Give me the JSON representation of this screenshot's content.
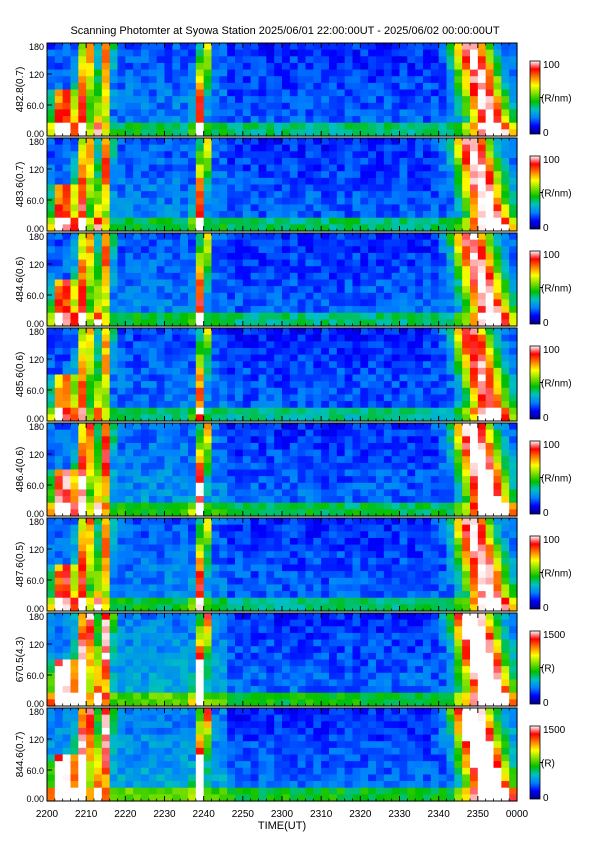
{
  "chart_data": {
    "type": "heatmap",
    "title": "Scanning Photomter at Syowa Station  2025/06/01 22:00:00UT - 2025/06/02 00:00:00UT",
    "xlabel": "TIME(UT)",
    "x_ticks": [
      "2200",
      "2210",
      "2220",
      "2230",
      "2240",
      "2250",
      "2300",
      "2310",
      "2320",
      "2330",
      "2340",
      "2350",
      "0000"
    ],
    "x_minutes": [
      0,
      10,
      20,
      30,
      40,
      50,
      60,
      70,
      80,
      90,
      100,
      110,
      120
    ],
    "y_ticks": [
      "0.00",
      "60.0",
      "120",
      "180"
    ],
    "ylim": [
      0,
      180
    ],
    "colorbar_colors": [
      "#00007f",
      "#0000ff",
      "#0080ff",
      "#00c0c0",
      "#00c000",
      "#80e000",
      "#ffff00",
      "#ff8000",
      "#ff0000",
      "#ffffff"
    ],
    "panels": [
      {
        "ylabel": "482.8(0.7)",
        "cbar_label": "(R/nm)",
        "cbar_max": "100",
        "cbar_min": "0",
        "intensity": 0.55
      },
      {
        "ylabel": "483.6(0.7)",
        "cbar_label": "(R/nm)",
        "cbar_max": "100",
        "cbar_min": "0",
        "intensity": 0.6
      },
      {
        "ylabel": "484.6(0.6)",
        "cbar_label": "(R/nm)",
        "cbar_max": "100",
        "cbar_min": "0",
        "intensity": 0.58
      },
      {
        "ylabel": "485.6(0.6)",
        "cbar_label": "(R/nm)",
        "cbar_max": "100",
        "cbar_min": "0",
        "intensity": 0.45
      },
      {
        "ylabel": "486.4(0.6)",
        "cbar_label": "(R/nm)",
        "cbar_max": "100",
        "cbar_min": "0",
        "intensity": 0.75
      },
      {
        "ylabel": "487.6(0.5)",
        "cbar_label": "(R/nm)",
        "cbar_max": "100",
        "cbar_min": "0",
        "intensity": 0.6
      },
      {
        "ylabel": "670.5(4.3)",
        "cbar_label": "(R)",
        "cbar_max": "1500",
        "cbar_min": "0",
        "intensity": 1.0
      },
      {
        "ylabel": "844.6(0.7)",
        "cbar_label": "(R)",
        "cbar_max": "1500",
        "cbar_min": "0",
        "intensity": 1.0
      }
    ]
  }
}
